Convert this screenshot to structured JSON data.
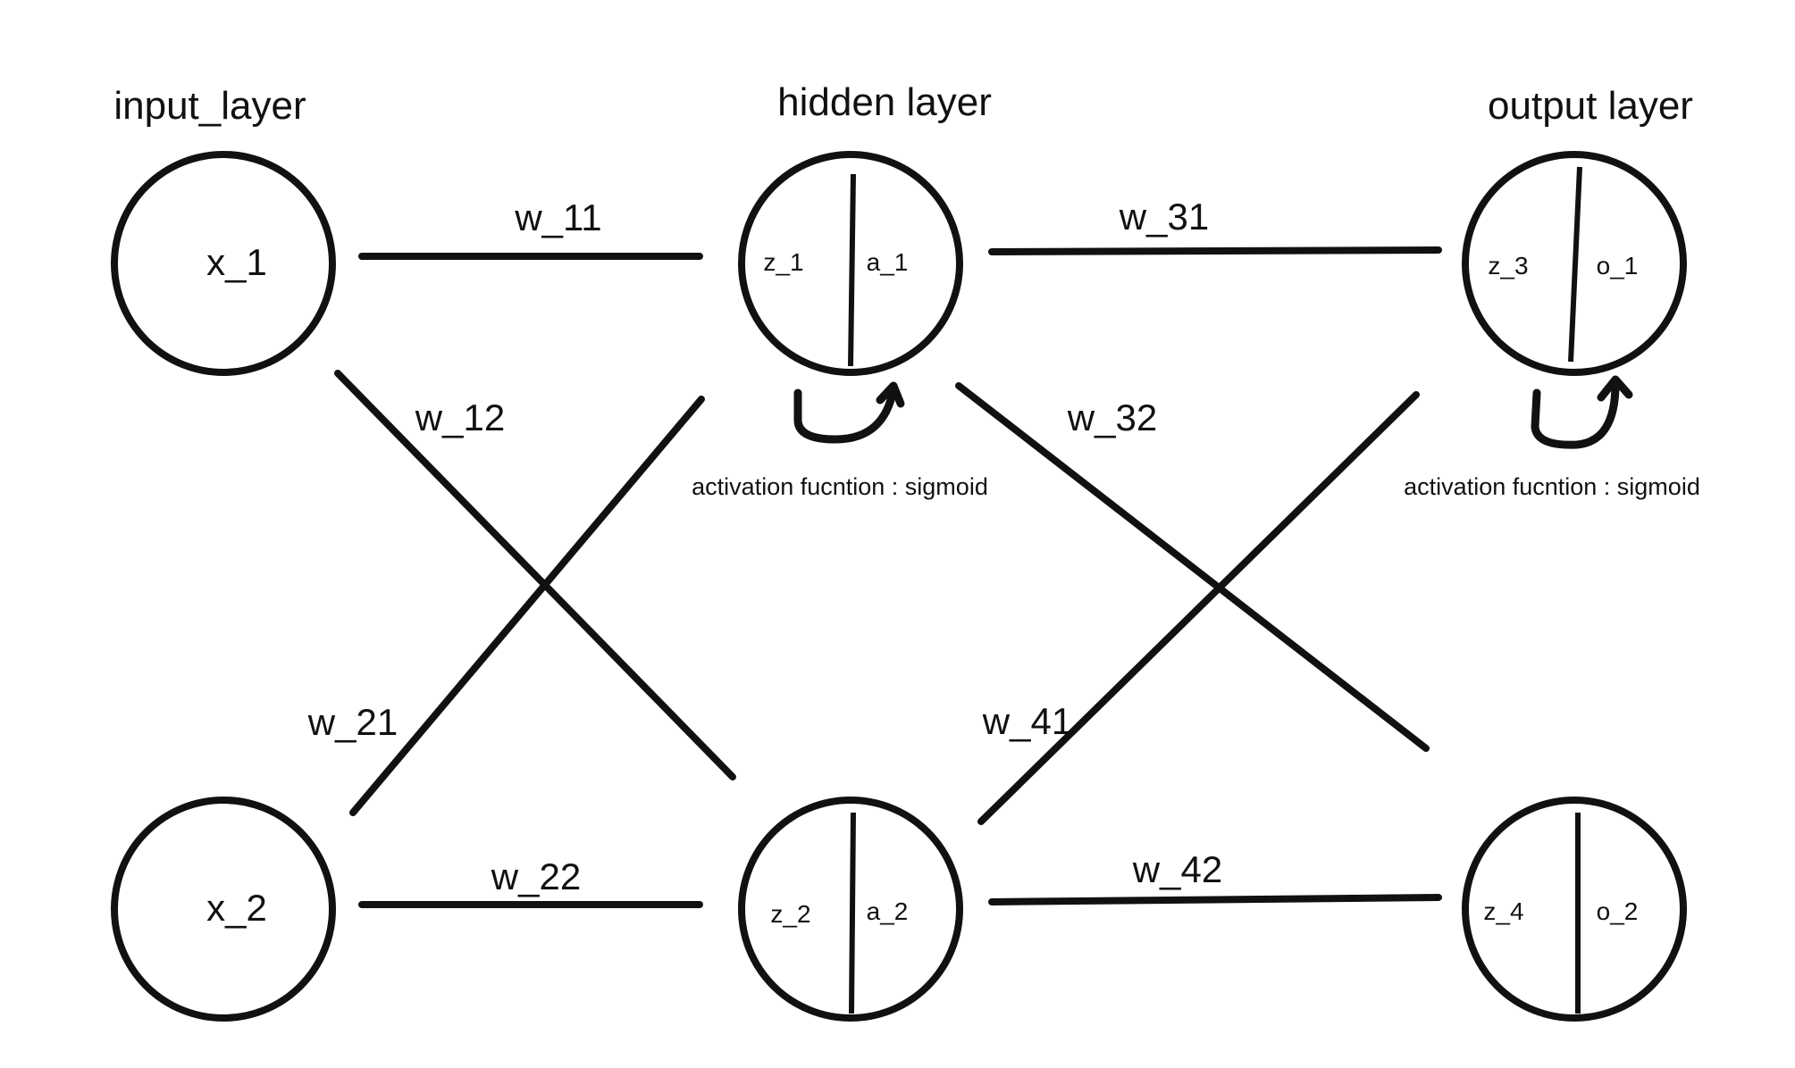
{
  "layers": {
    "input": "input_layer",
    "hidden": "hidden layer",
    "output": "output layer"
  },
  "nodes": {
    "x1": "x_1",
    "x2": "x_2",
    "h1": {
      "z": "z_1",
      "a": "a_1"
    },
    "h2": {
      "z": "z_2",
      "a": "a_2"
    },
    "o1": {
      "z": "z_3",
      "a": "o_1"
    },
    "o2": {
      "z": "z_4",
      "a": "o_2"
    }
  },
  "weights": {
    "w11": "w_11",
    "w12": "w_12",
    "w21": "w_21",
    "w22": "w_22",
    "w31": "w_31",
    "w32": "w_32",
    "w41": "w_41",
    "w42": "w_42"
  },
  "activation": {
    "hidden": "activation fucntion : sigmoid",
    "output": "activation fucntion : sigmoid"
  }
}
